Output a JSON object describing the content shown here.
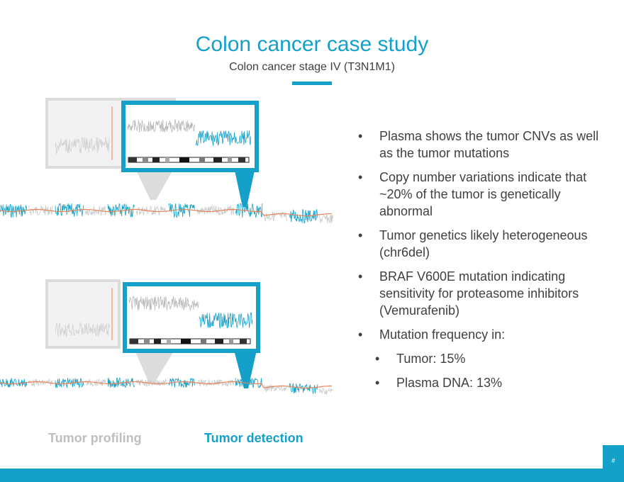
{
  "slide": {
    "title": "Colon cancer case study",
    "subtitle": "Colon cancer stage IV (T3N1M1)",
    "page_number": "#"
  },
  "bullets": [
    {
      "text": "Plasma shows the tumor CNVs as well as the tumor mutations",
      "level": 1
    },
    {
      "text": "Copy number variations indicate that ~20% of the tumor is genetically abnormal",
      "level": 1
    },
    {
      "text": "Tumor genetics likely heterogeneous (chr6del)",
      "level": 1
    },
    {
      "text": "BRAF V600E mutation indicating sensitivity for proteasome inhibitors (Vemurafenib)",
      "level": 1
    },
    {
      "text": "Mutation frequency in:",
      "level": 1
    },
    {
      "text": "Tumor: 15%",
      "level": 2
    },
    {
      "text": "Plasma DNA: 13%",
      "level": 2
    }
  ],
  "captions": {
    "profiling": "Tumor profiling",
    "detection": "Tumor detection"
  },
  "colors": {
    "accent": "#14a0c8",
    "trace_gray": "#c8c8c8",
    "trend_orange": "#e8845a",
    "text": "#404040",
    "caption_muted": "#bfbfbf"
  }
}
